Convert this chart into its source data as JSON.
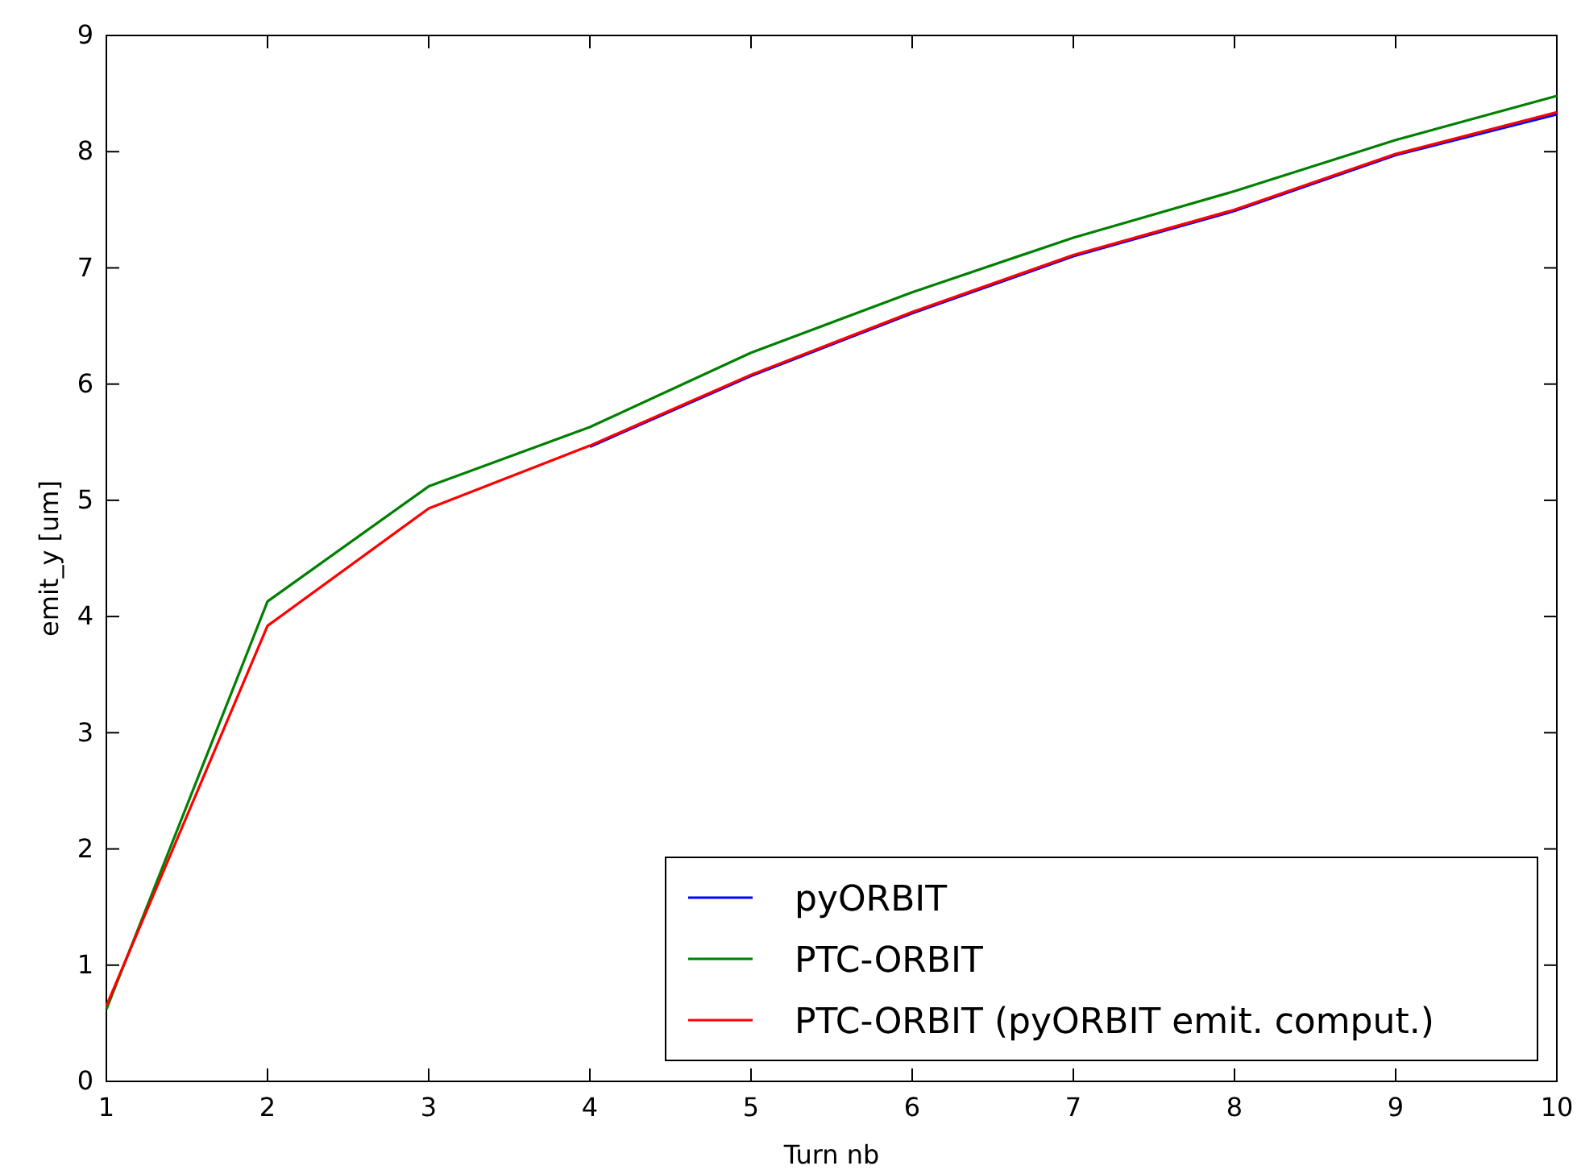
{
  "chart_data": {
    "type": "line",
    "xlabel": "Turn nb",
    "ylabel": "emit_y [um]",
    "x": [
      1,
      2,
      3,
      4,
      5,
      6,
      7,
      8,
      9,
      10
    ],
    "xlim": [
      1,
      10
    ],
    "xticks": [
      1,
      2,
      3,
      4,
      5,
      6,
      7,
      8,
      9,
      10
    ],
    "ylim": [
      0,
      9
    ],
    "yticks": [
      0,
      1,
      2,
      3,
      4,
      5,
      6,
      7,
      8,
      9
    ],
    "grid": false,
    "legend": "bottom right",
    "marker": "none",
    "line_style": "solid",
    "series": [
      {
        "name": "pyORBIT",
        "color": "#0000ff",
        "values": [
          null,
          null,
          null,
          5.46,
          6.07,
          6.61,
          7.1,
          7.49,
          7.97,
          8.32
        ]
      },
      {
        "name": "PTC-ORBIT",
        "color": "#008000",
        "values": [
          0.62,
          4.13,
          5.12,
          5.63,
          6.27,
          6.79,
          7.26,
          7.66,
          8.1,
          8.48
        ]
      },
      {
        "name": "PTC-ORBIT (pyORBIT emit. comput.)",
        "color": "#ff0000",
        "values": [
          0.65,
          3.92,
          4.93,
          5.47,
          6.08,
          6.62,
          7.11,
          7.5,
          7.98,
          8.34
        ]
      }
    ]
  }
}
